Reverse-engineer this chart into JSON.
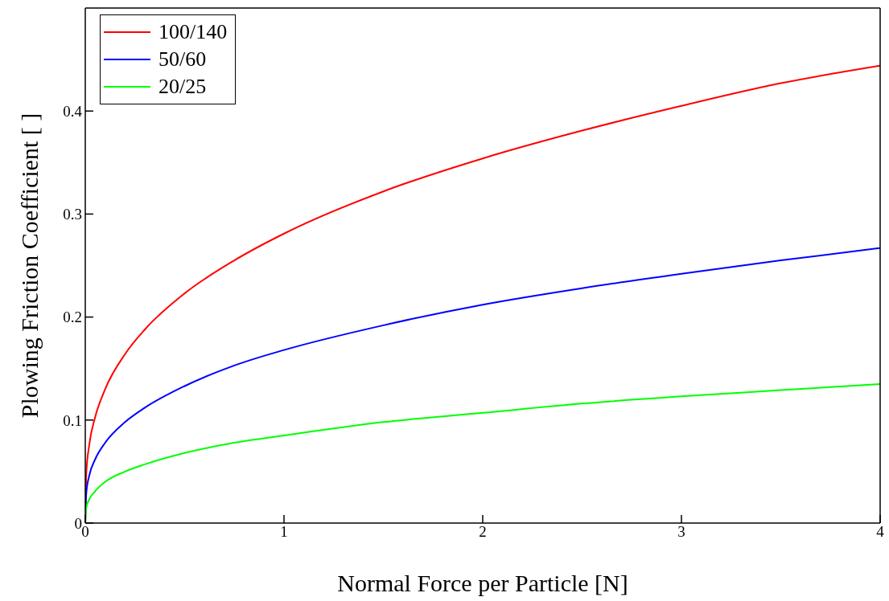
{
  "chart_data": {
    "type": "line",
    "xlabel": "Normal Force per Particle [N]",
    "ylabel": "Plowing Friction Coefficient [ ]",
    "x": [
      0,
      0.005,
      0.02,
      0.05,
      0.1,
      0.2,
      0.3,
      0.5,
      0.75,
      1,
      1.5,
      2,
      2.5,
      3,
      3.5,
      4
    ],
    "series": [
      {
        "name": "100/140",
        "color": "#ff0000",
        "values": [
          0,
          0.048,
          0.076,
          0.103,
          0.13,
          0.164,
          0.188,
          0.223,
          0.255,
          0.281,
          0.322,
          0.354,
          0.381,
          0.405,
          0.427,
          0.444
        ]
      },
      {
        "name": "50/60",
        "color": "#0000ff",
        "values": [
          0,
          0.029,
          0.046,
          0.062,
          0.078,
          0.098,
          0.112,
          0.133,
          0.153,
          0.168,
          0.192,
          0.212,
          0.228,
          0.242,
          0.255,
          0.267
        ]
      },
      {
        "name": "20/25",
        "color": "#00ff00",
        "values": [
          0,
          0.015,
          0.023,
          0.031,
          0.04,
          0.05,
          0.057,
          0.068,
          0.078,
          0.085,
          0.098,
          0.107,
          0.116,
          0.123,
          0.129,
          0.135
        ]
      }
    ],
    "xlim": [
      0,
      4
    ],
    "xticks": [
      0,
      1,
      2,
      3,
      4
    ],
    "ylim": [
      0,
      0.5
    ],
    "yticks": [
      0,
      0.1,
      0.2,
      0.3,
      0.4
    ],
    "grid": false,
    "legend": "top left",
    "marker": "none",
    "line_style": "solid"
  }
}
